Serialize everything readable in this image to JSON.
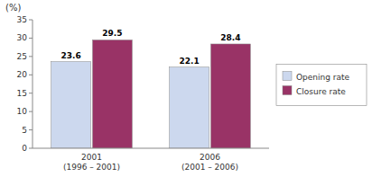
{
  "chart_data": {
    "type": "bar",
    "categories": [
      "2001\n(1996 – 2001)",
      "2006\n(2001 – 2006)"
    ],
    "series": [
      {
        "name": "Opening rate",
        "color": "#ccd8ee",
        "values": [
          23.6,
          22.1
        ]
      },
      {
        "name": "Closure rate",
        "color": "#993366",
        "values": [
          29.5,
          28.4
        ]
      }
    ],
    "y_label": "(%)",
    "ylim": [
      0,
      35
    ],
    "yticks": [
      0,
      5,
      10,
      15,
      20,
      25,
      30,
      35
    ],
    "grid": false,
    "legend": "right",
    "data_labels": true
  }
}
